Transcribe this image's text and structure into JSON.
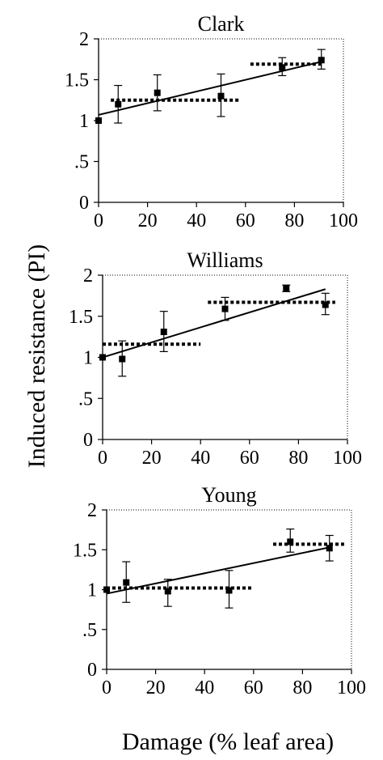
{
  "ylabel": "Induced resistance (PI)",
  "xlabel": "Damage (% leaf area)",
  "colors": {
    "ink": "#000000"
  },
  "chart_data": [
    {
      "type": "scatter",
      "title": "Clark",
      "xlim": [
        0,
        100
      ],
      "ylim": [
        0,
        2
      ],
      "xticks": [
        0,
        20,
        40,
        60,
        80,
        100
      ],
      "xtick_labels": [
        "0",
        "20",
        "40",
        "60",
        "80",
        "100"
      ],
      "yticks": [
        0,
        0.5,
        1,
        1.5,
        2
      ],
      "ytick_labels": [
        "0",
        ".5",
        "1",
        "1.5",
        "2"
      ],
      "points": [
        {
          "x": 0,
          "y": 1.0,
          "lo": 1.0,
          "hi": 1.0
        },
        {
          "x": 8,
          "y": 1.2,
          "lo": 0.97,
          "hi": 1.43
        },
        {
          "x": 24,
          "y": 1.34,
          "lo": 1.12,
          "hi": 1.56
        },
        {
          "x": 50,
          "y": 1.3,
          "lo": 1.05,
          "hi": 1.57
        },
        {
          "x": 75,
          "y": 1.65,
          "lo": 1.55,
          "hi": 1.77
        },
        {
          "x": 91,
          "y": 1.74,
          "lo": 1.63,
          "hi": 1.87
        }
      ],
      "regression": {
        "x": [
          0,
          91
        ],
        "y": [
          1.07,
          1.72
        ]
      },
      "step_means": [
        {
          "x": [
            5,
            58
          ],
          "y": 1.25
        },
        {
          "x": [
            62,
            92
          ],
          "y": 1.69
        }
      ]
    },
    {
      "type": "scatter",
      "title": "Williams",
      "xlim": [
        0,
        100
      ],
      "ylim": [
        0,
        2
      ],
      "xticks": [
        0,
        20,
        40,
        60,
        80,
        100
      ],
      "xtick_labels": [
        "0",
        "20",
        "40",
        "60",
        "80",
        "100"
      ],
      "yticks": [
        0,
        0.5,
        1,
        1.5,
        2
      ],
      "ytick_labels": [
        "0",
        ".5",
        "1",
        "1.5",
        "2"
      ],
      "points": [
        {
          "x": 0,
          "y": 1.0,
          "lo": 1.0,
          "hi": 1.0
        },
        {
          "x": 8,
          "y": 0.98,
          "lo": 0.77,
          "hi": 1.2
        },
        {
          "x": 25,
          "y": 1.31,
          "lo": 1.07,
          "hi": 1.56
        },
        {
          "x": 50,
          "y": 1.59,
          "lo": 1.45,
          "hi": 1.73
        },
        {
          "x": 75,
          "y": 1.84,
          "lo": 1.8,
          "hi": 1.88
        },
        {
          "x": 91,
          "y": 1.64,
          "lo": 1.52,
          "hi": 1.78
        }
      ],
      "regression": {
        "x": [
          0,
          91
        ],
        "y": [
          1.0,
          1.83
        ]
      },
      "step_means": [
        {
          "x": [
            0,
            40
          ],
          "y": 1.16
        },
        {
          "x": [
            43,
            95
          ],
          "y": 1.67
        }
      ]
    },
    {
      "type": "scatter",
      "title": "Young",
      "xlim": [
        0,
        100
      ],
      "ylim": [
        0,
        2
      ],
      "xticks": [
        0,
        20,
        40,
        60,
        80,
        100
      ],
      "xtick_labels": [
        "0",
        "20",
        "40",
        "60",
        "80",
        "100"
      ],
      "yticks": [
        0,
        0.5,
        1,
        1.5,
        2
      ],
      "ytick_labels": [
        "0",
        ".5",
        "1",
        "1.5",
        "2"
      ],
      "points": [
        {
          "x": 0,
          "y": 1.0,
          "lo": 1.0,
          "hi": 1.0
        },
        {
          "x": 8,
          "y": 1.09,
          "lo": 0.84,
          "hi": 1.35
        },
        {
          "x": 25,
          "y": 0.98,
          "lo": 0.79,
          "hi": 1.13
        },
        {
          "x": 50,
          "y": 0.99,
          "lo": 0.77,
          "hi": 1.24
        },
        {
          "x": 75,
          "y": 1.6,
          "lo": 1.47,
          "hi": 1.76
        },
        {
          "x": 91,
          "y": 1.52,
          "lo": 1.36,
          "hi": 1.68
        }
      ],
      "regression": {
        "x": [
          0,
          91
        ],
        "y": [
          0.95,
          1.53
        ]
      },
      "step_means": [
        {
          "x": [
            0,
            60
          ],
          "y": 1.02
        },
        {
          "x": [
            68,
            97
          ],
          "y": 1.57
        }
      ]
    }
  ]
}
